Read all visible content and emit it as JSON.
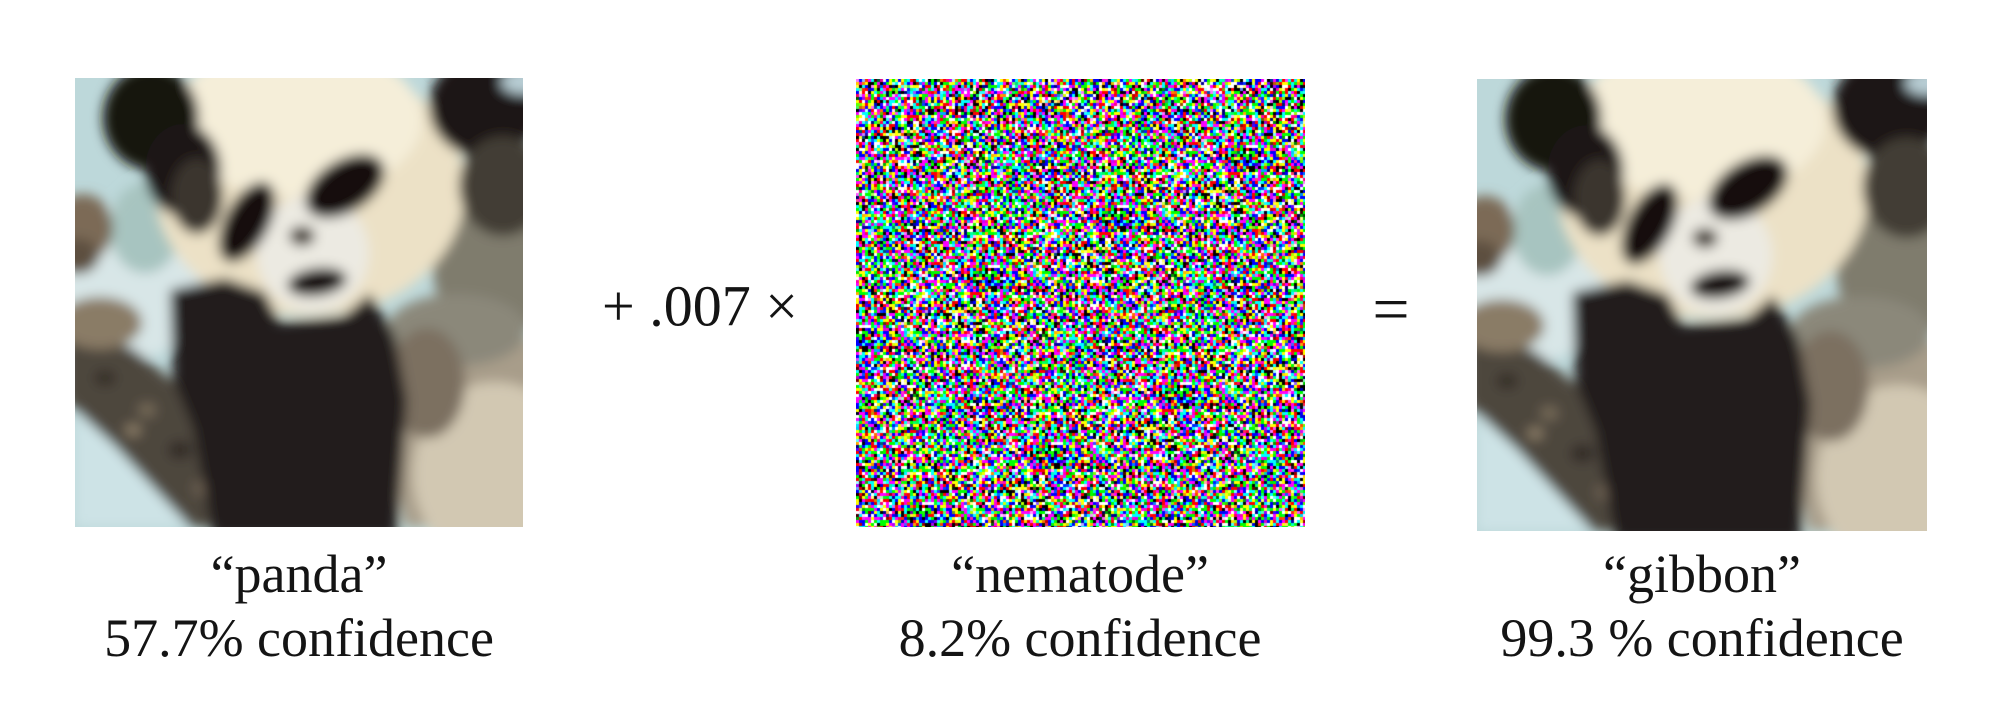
{
  "figure": {
    "panels": [
      {
        "image": "panda-photo",
        "label": "“panda”",
        "confidence": "57.7% confidence"
      },
      {
        "image": "adversarial-rgb-noise",
        "label": "“nematode”",
        "confidence": "8.2% confidence"
      },
      {
        "image": "perturbed-panda-photo",
        "label": "“gibbon”",
        "confidence": "99.3 % confidence"
      }
    ],
    "operators": {
      "plus": "+ .007 ×",
      "equals": "="
    },
    "colors": {
      "page_background": "#ffffff",
      "text": "#141414",
      "photo_background": "#bdd8da"
    }
  }
}
